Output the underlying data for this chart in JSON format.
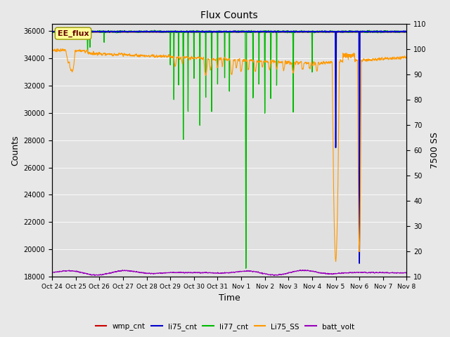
{
  "title": "Flux Counts",
  "ylabel_left": "Counts",
  "ylabel_right": "7500 SS",
  "xlabel": "Time",
  "ylim_left": [
    18000,
    36500
  ],
  "ylim_right": [
    10,
    110
  ],
  "yticks_left": [
    18000,
    20000,
    22000,
    24000,
    26000,
    28000,
    30000,
    32000,
    34000,
    36000
  ],
  "yticks_right": [
    10,
    20,
    30,
    40,
    50,
    60,
    70,
    80,
    90,
    100,
    110
  ],
  "x_labels": [
    "Oct 24",
    "Oct 25",
    "Oct 26",
    "Oct 27",
    "Oct 28",
    "Oct 29",
    "Oct 30",
    "Oct 31",
    "Nov 1",
    "Nov 2",
    "Nov 3",
    "Nov 4",
    "Nov 5",
    "Nov 6",
    "Nov 7",
    "Nov 8"
  ],
  "background_color": "#e8e8e8",
  "plot_bg_color": "#e0e0e0",
  "annotation_text": "EE_flux",
  "annotation_bg": "#ffff99",
  "annotation_border": "#999900",
  "legend_entries": [
    "wmp_cnt",
    "li75_cnt",
    "li77_cnt",
    "Li75_SS",
    "batt_volt"
  ],
  "legend_colors": [
    "#cc0000",
    "#0000cc",
    "#00bb00",
    "#ff9900",
    "#9900bb"
  ],
  "li77_color": "#00bb00",
  "li75_color": "#0000cc",
  "Li75_SS_color": "#ff9900",
  "batt_volt_color": "#9900bb",
  "wmp_cnt_color": "#cc0000",
  "figsize": [
    6.4,
    4.8
  ],
  "dpi": 100
}
